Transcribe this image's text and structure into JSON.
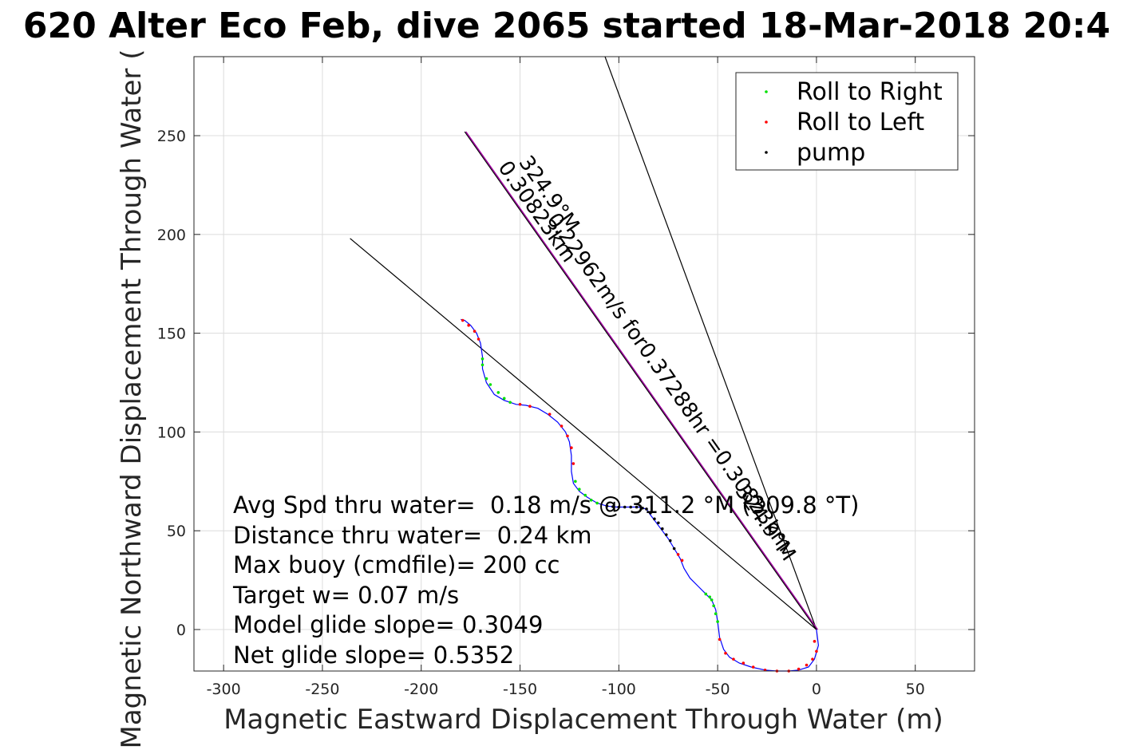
{
  "chart_data": {
    "type": "scatter",
    "title": "620 Alter Eco Feb, dive 2065 started 18-Mar-2018 20:4",
    "xlabel": "Magnetic Eastward Displacement Through Water (m)",
    "ylabel": "Magnetic Northward Displacement Through Water (",
    "xlim": [
      -315,
      80
    ],
    "ylim": [
      -21,
      290
    ],
    "xticks": [
      -300,
      -250,
      -200,
      -150,
      -100,
      -50,
      0,
      50
    ],
    "yticks": [
      0,
      50,
      100,
      150,
      200,
      250
    ],
    "grid": true,
    "legend_position": "top-right",
    "legend": [
      "Roll to Right",
      "Roll to Left",
      "pump"
    ],
    "colors": {
      "track": "#0000ff",
      "roll_right": "#00e000",
      "roll_left": "#ff0000",
      "pump": "#000000",
      "heading_line": "#a000a0",
      "ref_line": "#000000",
      "grid": "#dcdcdc"
    },
    "track": [
      [
        0,
        0
      ],
      [
        1,
        -8
      ],
      [
        -1,
        -15
      ],
      [
        -4,
        -19
      ],
      [
        -9,
        -20.5
      ],
      [
        -14,
        -21
      ],
      [
        -20,
        -21
      ],
      [
        -26,
        -20.5
      ],
      [
        -33,
        -19
      ],
      [
        -39,
        -17
      ],
      [
        -44,
        -14
      ],
      [
        -47,
        -10
      ],
      [
        -49,
        -4
      ],
      [
        -50,
        4
      ],
      [
        -51,
        10
      ],
      [
        -53,
        15
      ],
      [
        -56,
        18
      ],
      [
        -60,
        22
      ],
      [
        -64,
        26
      ],
      [
        -67,
        31
      ],
      [
        -69,
        36
      ],
      [
        -72,
        41
      ],
      [
        -75,
        46
      ],
      [
        -78,
        50
      ],
      [
        -81,
        54
      ],
      [
        -84,
        58
      ],
      [
        -86,
        61
      ],
      [
        -90,
        62
      ],
      [
        -96,
        62
      ],
      [
        -101,
        62
      ],
      [
        -106,
        62.5
      ],
      [
        -111,
        64
      ],
      [
        -116,
        67
      ],
      [
        -120,
        70
      ],
      [
        -123,
        74
      ],
      [
        -124,
        80
      ],
      [
        -124,
        88
      ],
      [
        -125,
        95
      ],
      [
        -127,
        100
      ],
      [
        -131,
        105
      ],
      [
        -136,
        109
      ],
      [
        -141,
        112
      ],
      [
        -147,
        113.5
      ],
      [
        -152,
        114
      ],
      [
        -158,
        116
      ],
      [
        -163,
        119
      ],
      [
        -167,
        125
      ],
      [
        -169,
        132
      ],
      [
        -169,
        138
      ],
      [
        -170,
        145
      ],
      [
        -172,
        150
      ],
      [
        -175,
        154
      ],
      [
        -178,
        156.5
      ],
      [
        -180,
        157
      ]
    ],
    "roll_right_points": [
      [
        -50,
        4
      ],
      [
        -51,
        8
      ],
      [
        -52,
        12
      ],
      [
        -53,
        15
      ],
      [
        -54,
        16.5
      ],
      [
        -56,
        18
      ],
      [
        -122,
        75
      ],
      [
        -120,
        71
      ],
      [
        -117,
        68
      ],
      [
        -114,
        65.5
      ],
      [
        -111,
        64
      ],
      [
        -167,
        127
      ],
      [
        -165,
        124
      ],
      [
        -161,
        120
      ],
      [
        -158,
        117
      ],
      [
        -155,
        115
      ],
      [
        -169,
        134
      ],
      [
        -169,
        137
      ]
    ],
    "roll_left_points": [
      [
        -1,
        -6
      ],
      [
        0,
        -11
      ],
      [
        -2,
        -15
      ],
      [
        -5,
        -18
      ],
      [
        -9,
        -20
      ],
      [
        -14,
        -21
      ],
      [
        -20,
        -21
      ],
      [
        -26,
        -20.5
      ],
      [
        -32,
        -19
      ],
      [
        -37,
        -17
      ],
      [
        -42,
        -15
      ],
      [
        -46,
        -12
      ],
      [
        -49,
        -5
      ],
      [
        -68,
        35
      ],
      [
        -70,
        38
      ],
      [
        -123,
        84
      ],
      [
        -124,
        92
      ],
      [
        -126,
        98
      ],
      [
        -129,
        103
      ],
      [
        -135,
        109
      ],
      [
        -145,
        113
      ],
      [
        -150,
        114
      ],
      [
        -171,
        147
      ],
      [
        -173,
        151
      ],
      [
        -176,
        154
      ],
      [
        -179,
        156.5
      ]
    ],
    "pump_points": [
      [
        -72,
        41
      ],
      [
        -74,
        45
      ],
      [
        -76,
        48
      ],
      [
        -78,
        51
      ],
      [
        -80,
        54
      ],
      [
        -82,
        56
      ],
      [
        -84,
        59
      ],
      [
        -86,
        61
      ],
      [
        -88,
        61.5
      ],
      [
        -91,
        62
      ],
      [
        -94,
        62
      ],
      [
        -97,
        62
      ],
      [
        -100,
        62
      ],
      [
        -103,
        62.2
      ],
      [
        -106,
        62.5
      ]
    ],
    "heading_line": [
      [
        0,
        0
      ],
      [
        -178,
        252
      ]
    ],
    "reference_lines": [
      [
        [
          0,
          0
        ],
        [
          -107,
          290
        ]
      ],
      [
        [
          0,
          0
        ],
        [
          -236,
          198
        ]
      ]
    ],
    "stats": [
      "Avg Spd thru water=  0.18 m/s @ 311.2 °M (309.8 °T)",
      "Distance thru water=  0.24 km",
      "Max buoy (cmdfile)= 200 cc",
      "Target w= 0.07 m/s",
      "Model glide slope= 0.3049",
      "Net glide slope= 0.5352"
    ],
    "annotations": [
      "324.9°M",
      "0.30823km",
      "0.22962m/s for0.37288hr =0.30823km",
      "324.9°M"
    ]
  }
}
